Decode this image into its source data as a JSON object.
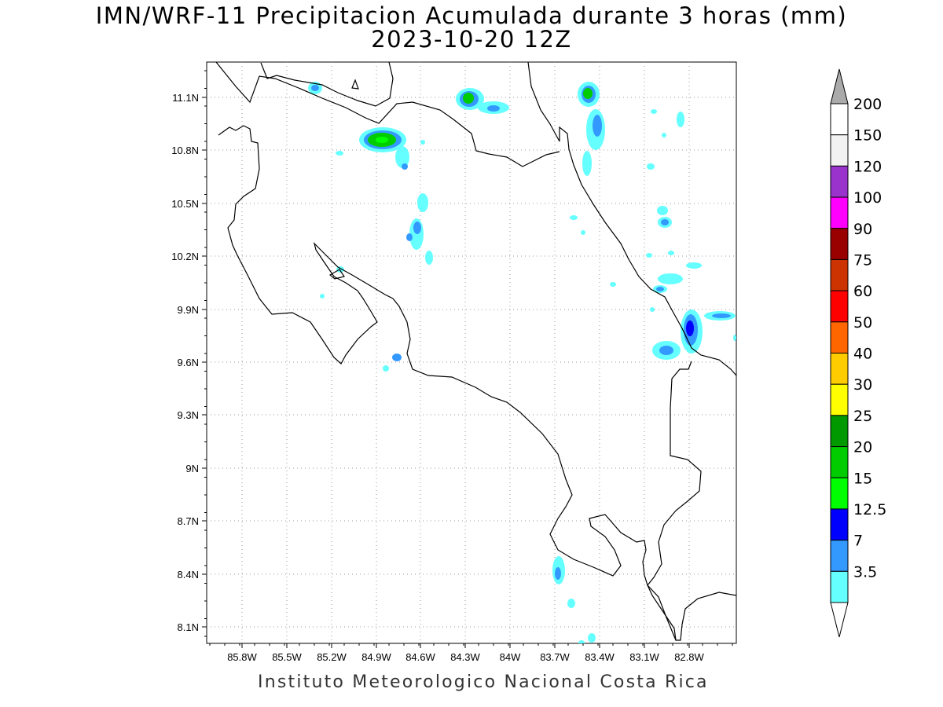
{
  "title": {
    "line1": "IMN/WRF-11 Precipitacion Acumulada durante 3 horas (mm)",
    "line2": "2023-10-20 12Z"
  },
  "footer": "Instituto Meteorologico Nacional Costa Rica",
  "map": {
    "lon_labels": [
      "85.8W",
      "85.5W",
      "85.2W",
      "84.9W",
      "84.6W",
      "84.3W",
      "84W",
      "83.7W",
      "83.4W",
      "83.1W",
      "82.8W"
    ],
    "lat_labels": [
      "11.1N",
      "10.8N",
      "10.5N",
      "10.2N",
      "9.9N",
      "9.6N",
      "9.3N",
      "9N",
      "8.7N",
      "8.4N",
      "8.1N"
    ],
    "grid": "dotted"
  },
  "colorbar": {
    "labels": [
      "200",
      "150",
      "120",
      "100",
      "90",
      "75",
      "60",
      "50",
      "40",
      "30",
      "25",
      "20",
      "15",
      "12.5",
      "7",
      "3.5"
    ],
    "colors": [
      "#ffffff",
      "#f2f2f2",
      "#9933cc",
      "#ff00ff",
      "#990000",
      "#cc3300",
      "#ff0000",
      "#ff6600",
      "#ffcc00",
      "#ffff00",
      "#009900",
      "#00cc00",
      "#00ff00",
      "#0000ff",
      "#3399ff",
      "#66ffff"
    ],
    "top_triangle_color": "#aaaaaa",
    "bottom_triangle_color": "#ffffff"
  },
  "precip_colors": {
    "light": "#66ffff",
    "mid": "#3399ff",
    "heavy": "#0000ff",
    "green": "#00cc00",
    "bright_green": "#00ff00"
  }
}
